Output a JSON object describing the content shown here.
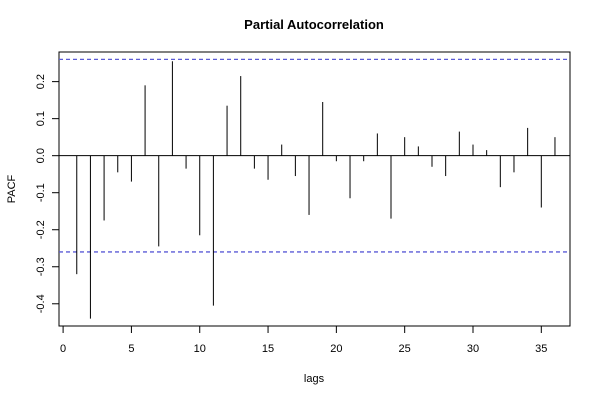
{
  "chart_data": {
    "type": "bar",
    "title": "Partial Autocorrelation",
    "xlabel": "lags",
    "ylabel": "PACF",
    "xlim": [
      -0.3,
      37.1
    ],
    "ylim": [
      -0.46,
      0.28
    ],
    "x_ticks": [
      0,
      5,
      10,
      15,
      20,
      25,
      30,
      35
    ],
    "x_tick_labels": [
      "0",
      "5",
      "10",
      "15",
      "20",
      "25",
      "30",
      "35"
    ],
    "y_ticks": [
      -0.4,
      -0.3,
      -0.2,
      -0.1,
      0.0,
      0.1,
      0.2
    ],
    "y_tick_labels": [
      "-0.4",
      "-0.3",
      "-0.2",
      "-0.1",
      "0.0",
      "0.1",
      "0.2"
    ],
    "confidence_band": {
      "upper": 0.26,
      "lower": -0.26,
      "color": "#5b5bd6"
    },
    "grid": false,
    "x": [
      1,
      2,
      3,
      4,
      5,
      6,
      7,
      8,
      9,
      10,
      11,
      12,
      13,
      14,
      15,
      16,
      17,
      18,
      19,
      20,
      21,
      22,
      23,
      24,
      25,
      26,
      27,
      28,
      29,
      30,
      31,
      32,
      33,
      34,
      35,
      36
    ],
    "values": [
      -0.32,
      -0.44,
      -0.175,
      -0.045,
      -0.07,
      0.19,
      -0.245,
      0.255,
      -0.035,
      -0.215,
      -0.405,
      0.135,
      0.215,
      -0.035,
      -0.065,
      0.03,
      -0.055,
      -0.16,
      0.145,
      -0.015,
      -0.115,
      -0.015,
      0.06,
      -0.17,
      0.05,
      0.025,
      -0.03,
      -0.055,
      0.065,
      0.03,
      0.015,
      -0.085,
      -0.045,
      0.075,
      -0.14,
      0.05
    ]
  }
}
